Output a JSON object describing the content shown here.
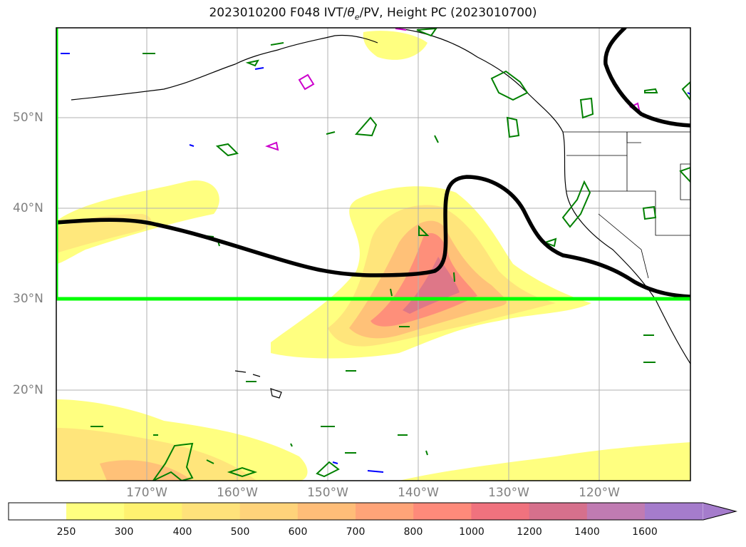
{
  "title": {
    "prefix": "2023010200 F048 IVT/",
    "theta": "θ",
    "theta_sub": "e",
    "suffix": "/PV, Height PC (2023010700)"
  },
  "axes": {
    "lat_labels": [
      "50°N",
      "40°N",
      "30°N",
      "20°N"
    ],
    "lon_labels": [
      "170°W",
      "160°W",
      "150°W",
      "140°W",
      "130°W",
      "120°W"
    ]
  },
  "colorbar": {
    "ticks": [
      "250",
      "300",
      "400",
      "500",
      "600",
      "700",
      "800",
      "1000",
      "1200",
      "1400",
      "1600"
    ],
    "colors": [
      "#ffff80",
      "#fff270",
      "#ffe27a",
      "#ffd37a",
      "#ffbd78",
      "#ffa478",
      "#fe8a7a",
      "#f0727e",
      "#d6708c",
      "#c07bb2",
      "#a57ccc"
    ],
    "extend": "max"
  },
  "map_style": {
    "ivt_colormap": "yellow-orange-red-purple",
    "height_contour_color": "#000000",
    "theta_contour_color": "#008000",
    "pv_contour_color": "#cc00cc",
    "neg_contour_color": "#0000ff",
    "box_color": "#00ff00",
    "grid": true
  }
}
